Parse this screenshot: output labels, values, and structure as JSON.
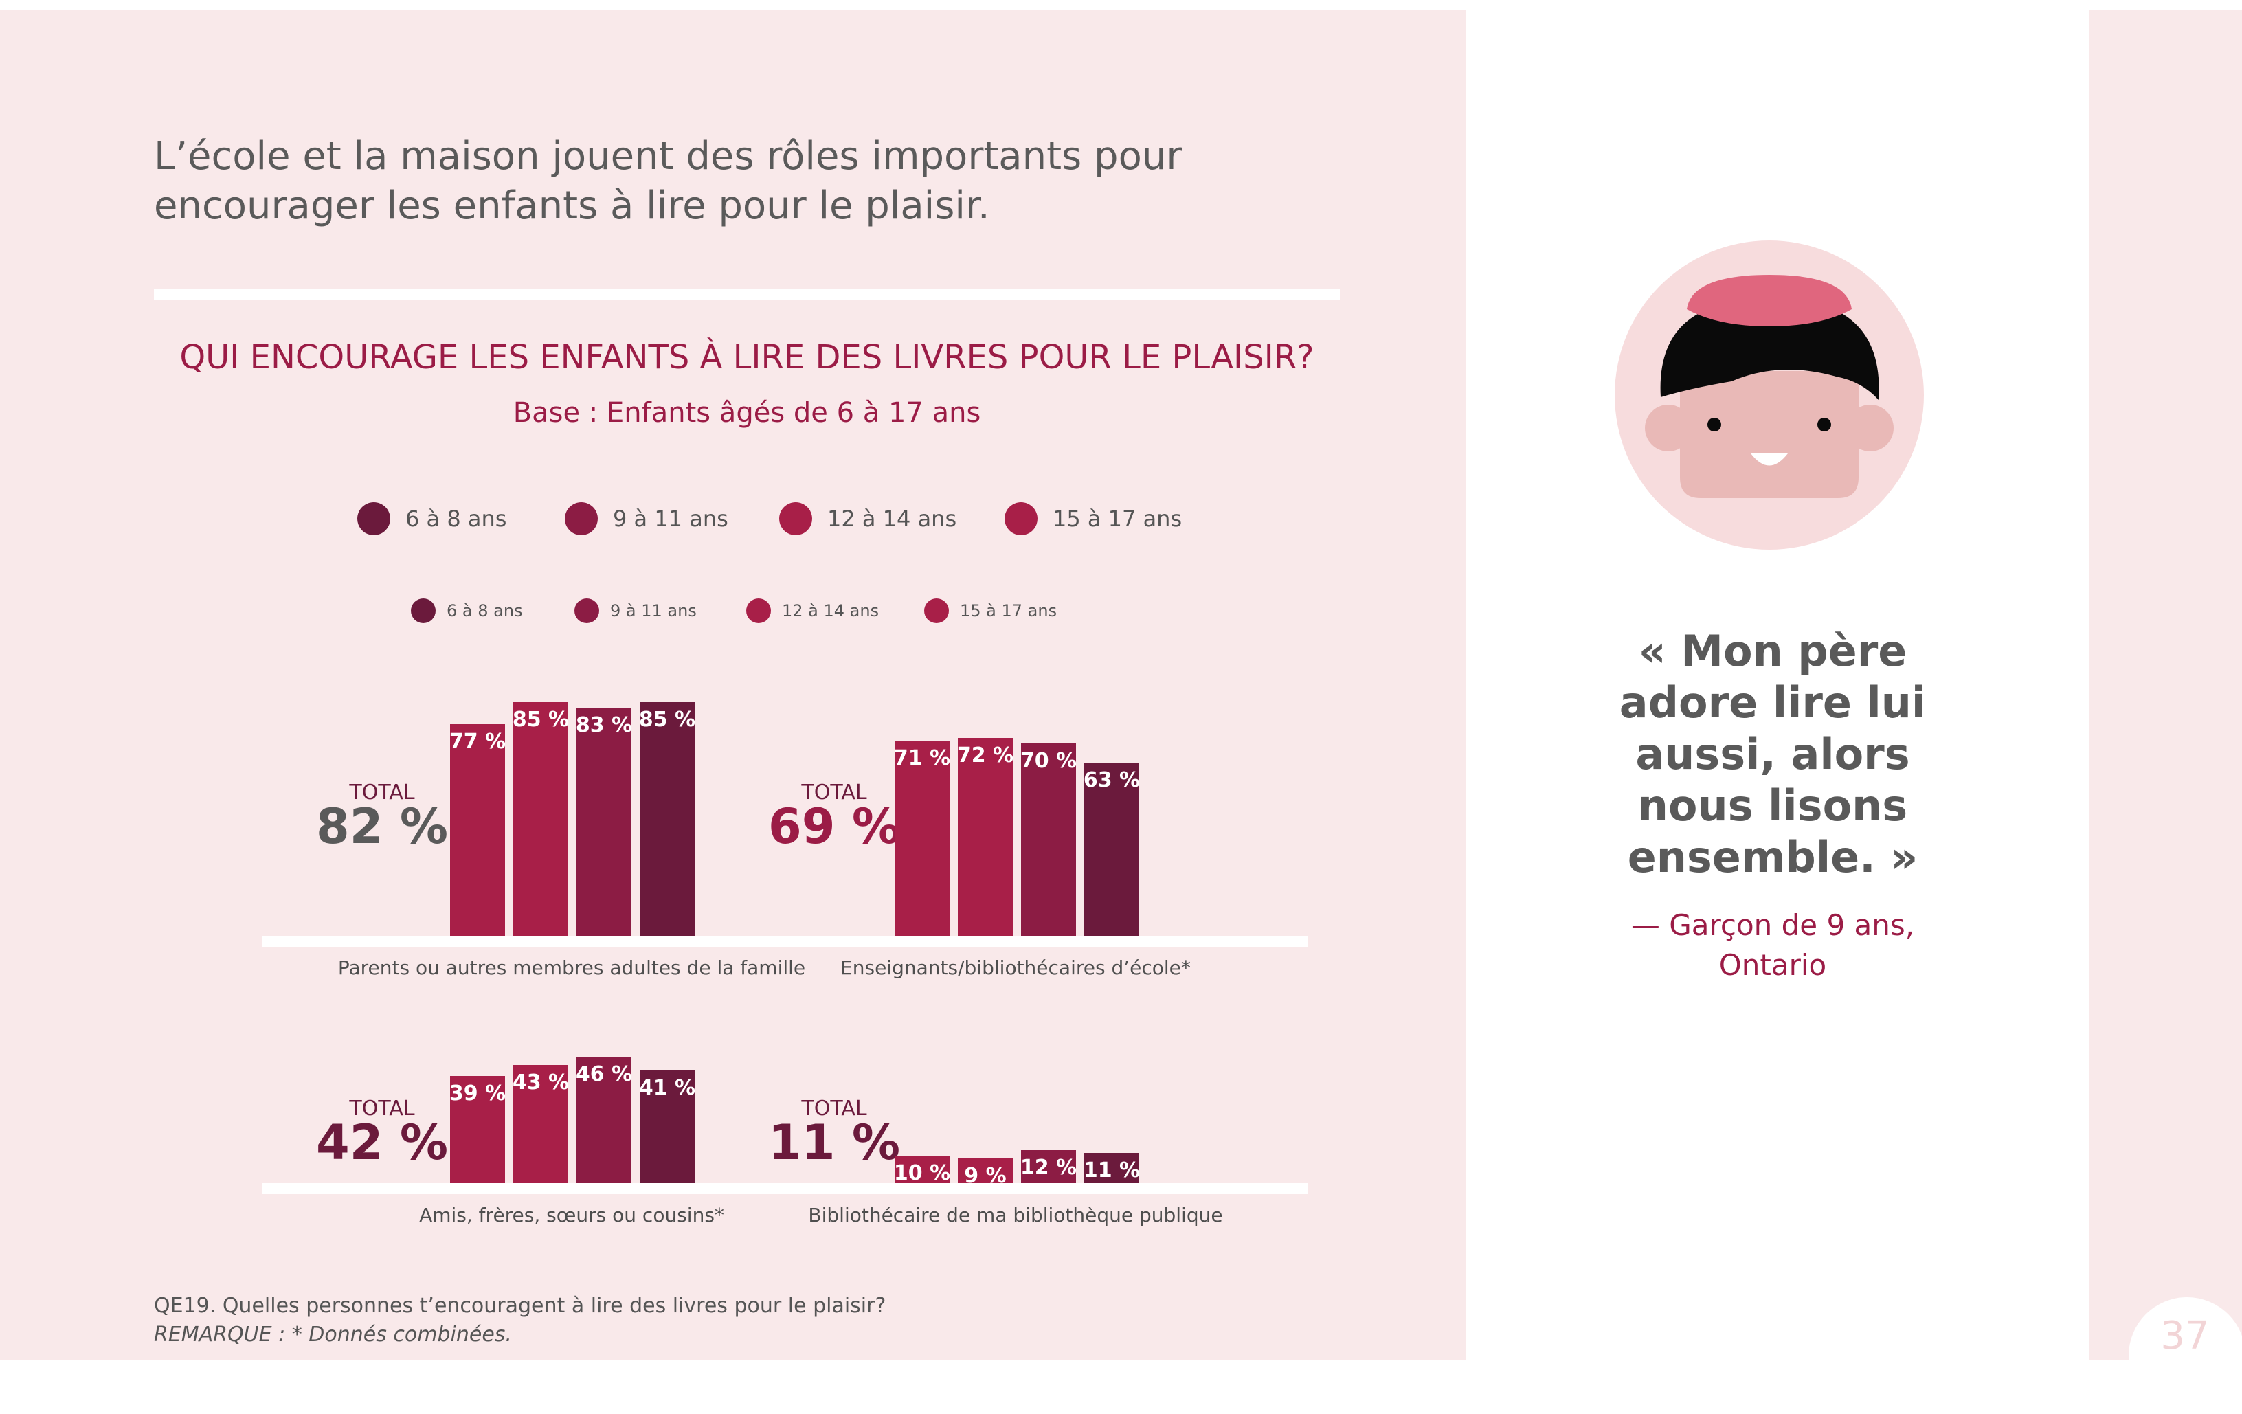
{
  "headline": {
    "line1": "L’école et la maison jouent des rôles importants pour",
    "line2": "encourager les enfants à lire pour le plaisir."
  },
  "legend": {
    "items": [
      {
        "label": "6 à 8 ans",
        "color": "#6b1a3c"
      },
      {
        "label": "9 à 11 ans",
        "color": "#8c1c44"
      },
      {
        "label": "12 à 14 ans",
        "color": "#a81f48"
      },
      {
        "label": "15 à 17 ans",
        "color": "#a81f48"
      }
    ]
  },
  "total_word": "TOTAL",
  "colors": {
    "accent": "#9b1c46",
    "bar_15_17": "#6b1a3c",
    "bar_12_14": "#8c1c44",
    "bar_other": "#a81f48",
    "panel": "#f9e9ea",
    "text_gray": "#5a5a5a",
    "avatar_skin": "#e9b9b7",
    "avatar_hair": "#0a0a0a",
    "avatar_cap": "#e0667e",
    "avatar_circle": "#f7dcdd"
  },
  "chart_data": {
    "type": "bar",
    "title": "QUI ENCOURAGE LES ENFANTS À LIRE DES LIVRES POUR LE PLAISIR?",
    "subtitle": "Base : Enfants âgés de 6 à 17 ans",
    "series_names": [
      "6 à 8 ans",
      "9 à 11 ans",
      "12 à 14 ans",
      "15 à 17 ans"
    ],
    "unit": "%",
    "groups": [
      {
        "category": "Parents ou autres membres adultes de la famille",
        "total": "82 %",
        "total_color": "#5a5a5a",
        "values": [
          77,
          85,
          83,
          85
        ],
        "labels": [
          "77 %",
          "85 %",
          "83 %",
          "85 %"
        ]
      },
      {
        "category": "Enseignants/bibliothécaires d’école*",
        "total": "69 %",
        "total_color": "#9b1c46",
        "values": [
          71,
          72,
          70,
          63
        ],
        "labels": [
          "71 %",
          "72 %",
          "70 %",
          "63 %"
        ]
      },
      {
        "category": "Amis, frères, sœurs ou cousins*",
        "total": "42 %",
        "total_color": "#6b1a3c",
        "values": [
          39,
          43,
          46,
          41
        ],
        "labels": [
          "39 %",
          "43 %",
          "46 %",
          "41 %"
        ]
      },
      {
        "category": "Bibliothécaire de ma bibliothèque publique",
        "total": "11 %",
        "total_color": "#6b1a3c",
        "values": [
          10,
          9,
          12,
          11
        ],
        "labels": [
          "10 %",
          "9 %",
          "12 %",
          "11 %"
        ]
      }
    ]
  },
  "footnote": {
    "question": "QE19. Quelles personnes t’encouragent à lire des livres pour le plaisir?",
    "remark": "REMARQUE : * Donnés combinées."
  },
  "quote": {
    "lines": [
      "« Mon père",
      "adore lire lui",
      "aussi, alors",
      "nous lisons",
      "ensemble. »"
    ],
    "attribution_line1": "— Garçon de 9 ans,",
    "attribution_line2": "Ontario"
  },
  "page_number": "37"
}
